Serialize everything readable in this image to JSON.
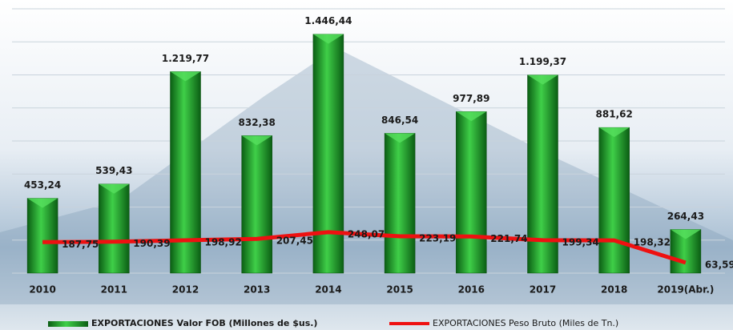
{
  "chart_data": {
    "type": "bar_line",
    "categories": [
      "2010",
      "2011",
      "2012",
      "2013",
      "2014",
      "2015",
      "2016",
      "2017",
      "2018",
      "2019(Abr.)"
    ],
    "series": [
      {
        "name": "EXPORTACIONES Valor FOB (Millones de $us.)",
        "type": "bar",
        "color": "#1f9a2a",
        "values": [
          453.24,
          539.43,
          1219.77,
          832.38,
          1446.44,
          846.54,
          977.89,
          1199.37,
          881.62,
          264.43
        ],
        "value_labels": [
          "453,24",
          "539,43",
          "1.219,77",
          "832,38",
          "1.446,44",
          "846,54",
          "977,89",
          "1.199,37",
          "881,62",
          "264,43"
        ]
      },
      {
        "name": "EXPORTACIONES Peso Bruto (Miles de Tn.)",
        "type": "line",
        "color": "#ee1111",
        "axis": "y2",
        "values": [
          187.75,
          190.39,
          198.92,
          207.45,
          248.07,
          223.19,
          221.74,
          199.34,
          198.32,
          63.59
        ],
        "value_labels": [
          "187,75",
          "190,39",
          "198,92",
          "207,45",
          "248,07",
          "223,19",
          "221,74",
          "199,34",
          "198,32",
          "63,59"
        ]
      }
    ],
    "ylim": [
      0,
      1600
    ],
    "yticks": [
      0,
      200,
      400,
      600,
      800,
      1000,
      1200,
      1400,
      1600
    ],
    "y2lim": [
      0,
      1600
    ],
    "grid": true,
    "legend": "bottom"
  }
}
